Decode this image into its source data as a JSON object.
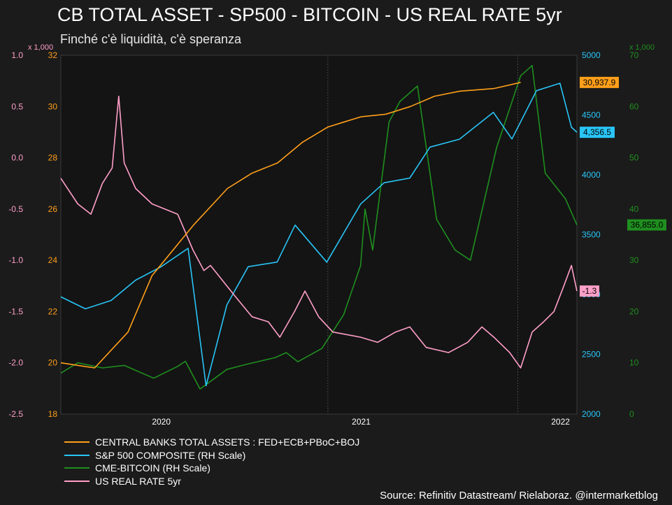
{
  "header": {
    "title": "CB TOTAL ASSET - SP500 - BITCOIN - US REAL RATE 5yr",
    "subtitle": "Finché c'è liquidità, c'è speranza"
  },
  "footer": {
    "source": "Source: Refinitiv Datastream/ Rielaboraz. @intermarketblog"
  },
  "colors": {
    "background": "#1b1b1b",
    "plot_background": "#141414",
    "grid": "#555555",
    "cb": "#ff9f1a",
    "spx": "#29c5f6",
    "btc": "#1f8f1f",
    "real": "#ff9fc8"
  },
  "chart_data": {
    "type": "line",
    "x_range": [
      "2019-07-01",
      "2022-01-31"
    ],
    "x_ticks": [
      {
        "label": "2020",
        "date": "2020-01-01"
      },
      {
        "label": "2021",
        "date": "2021-01-01"
      },
      {
        "label": "2022",
        "date": "2022-01-01"
      }
    ],
    "vertical_marker_dates": [
      "2020-11-01",
      "2021-10-15"
    ],
    "axes": {
      "real_rate": {
        "side": "left-outer",
        "ylim": [
          -2.5,
          1.0
        ],
        "ticks": [
          "1.0",
          "0.5",
          "0.0",
          "-0.5",
          "-1.0",
          "-1.5",
          "-2.0",
          "-2.5"
        ],
        "tick_values": [
          1.0,
          0.5,
          0.0,
          -0.5,
          -1.0,
          -1.5,
          -2.0,
          -2.5
        ],
        "multiplier": "x 1,000",
        "color": "#ff9fc8"
      },
      "cb_assets": {
        "side": "left-inner",
        "ylim": [
          18,
          32
        ],
        "ticks": [
          "32",
          "30",
          "28",
          "26",
          "24",
          "22",
          "20",
          "18"
        ],
        "tick_values": [
          32,
          30,
          28,
          26,
          24,
          22,
          20,
          18
        ],
        "color": "#ff9f1a"
      },
      "sp500": {
        "side": "right-inner",
        "ylim": [
          2000,
          5000
        ],
        "ticks": [
          "5000",
          "4500",
          "4000",
          "3500",
          "3000",
          "2500",
          "2000"
        ],
        "tick_values": [
          5000,
          4500,
          4000,
          3500,
          3000,
          2500,
          2000
        ],
        "color": "#29c5f6"
      },
      "bitcoin": {
        "side": "right-outer",
        "ylim": [
          0,
          70
        ],
        "ticks": [
          "70",
          "60",
          "50",
          "40",
          "30",
          "20",
          "10",
          "0"
        ],
        "tick_values": [
          70,
          60,
          50,
          40,
          30,
          20,
          10,
          0
        ],
        "multiplier": "x 1,000",
        "color": "#1f8f1f"
      }
    },
    "series": [
      {
        "name": "CENTRAL BANKS TOTAL ASSETS : FED+ECB+PBoC+BOJ",
        "axis": "cb_assets",
        "color": "#ff9f1a",
        "last_label": "30,937.9",
        "points": [
          [
            "2019-07-01",
            20.0
          ],
          [
            "2019-09-01",
            19.8
          ],
          [
            "2019-11-01",
            21.2
          ],
          [
            "2019-12-15",
            23.4
          ],
          [
            "2020-03-01",
            25.4
          ],
          [
            "2020-05-01",
            26.8
          ],
          [
            "2020-06-15",
            27.4
          ],
          [
            "2020-08-01",
            27.8
          ],
          [
            "2020-09-15",
            28.6
          ],
          [
            "2020-11-01",
            29.2
          ],
          [
            "2020-12-01",
            29.4
          ],
          [
            "2021-01-01",
            29.6
          ],
          [
            "2021-02-15",
            29.7
          ],
          [
            "2021-04-01",
            30.0
          ],
          [
            "2021-05-15",
            30.4
          ],
          [
            "2021-07-01",
            30.6
          ],
          [
            "2021-09-01",
            30.7
          ],
          [
            "2021-10-20",
            30.94
          ]
        ]
      },
      {
        "name": "S&P 500 COMPOSITE (RH Scale)",
        "axis": "sp500",
        "color": "#29c5f6",
        "last_label": "4,356.5",
        "points": [
          [
            "2019-07-01",
            2980
          ],
          [
            "2019-08-15",
            2880
          ],
          [
            "2019-10-01",
            2950
          ],
          [
            "2019-11-15",
            3120
          ],
          [
            "2019-12-31",
            3230
          ],
          [
            "2020-02-19",
            3386
          ],
          [
            "2020-03-23",
            2237
          ],
          [
            "2020-04-30",
            2912
          ],
          [
            "2020-06-08",
            3232
          ],
          [
            "2020-07-31",
            3271
          ],
          [
            "2020-09-02",
            3580
          ],
          [
            "2020-10-30",
            3270
          ],
          [
            "2020-12-31",
            3756
          ],
          [
            "2021-02-12",
            3934
          ],
          [
            "2021-03-31",
            3973
          ],
          [
            "2021-05-07",
            4232
          ],
          [
            "2021-06-30",
            4298
          ],
          [
            "2021-08-31",
            4523
          ],
          [
            "2021-10-04",
            4300
          ],
          [
            "2021-11-18",
            4704
          ],
          [
            "2021-12-31",
            4766
          ],
          [
            "2022-01-21",
            4398
          ],
          [
            "2022-01-31",
            4356
          ]
        ]
      },
      {
        "name": "CME-BITCOIN (RH Scale)",
        "axis": "bitcoin",
        "color": "#1f8f1f",
        "last_label": "36,855.0",
        "points": [
          [
            "2019-07-01",
            8
          ],
          [
            "2019-08-01",
            10
          ],
          [
            "2019-09-15",
            9
          ],
          [
            "2019-10-25",
            9.5
          ],
          [
            "2019-12-18",
            7
          ],
          [
            "2020-01-31",
            9.3
          ],
          [
            "2020-02-14",
            10.3
          ],
          [
            "2020-03-12",
            4.9
          ],
          [
            "2020-04-30",
            8.7
          ],
          [
            "2020-06-01",
            9.6
          ],
          [
            "2020-07-27",
            11
          ],
          [
            "2020-08-17",
            12
          ],
          [
            "2020-09-07",
            10.2
          ],
          [
            "2020-10-21",
            12.8
          ],
          [
            "2020-11-30",
            19.4
          ],
          [
            "2020-12-31",
            29
          ],
          [
            "2021-01-08",
            40
          ],
          [
            "2021-01-22",
            32
          ],
          [
            "2021-02-21",
            57
          ],
          [
            "2021-03-13",
            61
          ],
          [
            "2021-04-14",
            64
          ],
          [
            "2021-05-19",
            38
          ],
          [
            "2021-06-22",
            32
          ],
          [
            "2021-07-20",
            30
          ],
          [
            "2021-09-06",
            52
          ],
          [
            "2021-10-20",
            66
          ],
          [
            "2021-11-10",
            68
          ],
          [
            "2021-12-04",
            47
          ],
          [
            "2022-01-10",
            42
          ],
          [
            "2022-01-31",
            36.9
          ]
        ]
      },
      {
        "name": "US REAL RATE 5yr",
        "axis": "real_rate",
        "color": "#ff9fc8",
        "last_label": "-1.3",
        "points": [
          [
            "2019-07-01",
            -0.2
          ],
          [
            "2019-08-01",
            -0.45
          ],
          [
            "2019-08-25",
            -0.55
          ],
          [
            "2019-09-15",
            -0.25
          ],
          [
            "2019-10-03",
            -0.1
          ],
          [
            "2019-10-15",
            0.6
          ],
          [
            "2019-10-25",
            -0.05
          ],
          [
            "2019-11-15",
            -0.3
          ],
          [
            "2019-12-15",
            -0.45
          ],
          [
            "2020-01-31",
            -0.55
          ],
          [
            "2020-02-28",
            -0.9
          ],
          [
            "2020-03-19",
            -1.1
          ],
          [
            "2020-03-31",
            -1.05
          ],
          [
            "2020-05-15",
            -1.35
          ],
          [
            "2020-06-15",
            -1.55
          ],
          [
            "2020-07-15",
            -1.6
          ],
          [
            "2020-08-05",
            -1.75
          ],
          [
            "2020-09-01",
            -1.5
          ],
          [
            "2020-09-20",
            -1.3
          ],
          [
            "2020-10-15",
            -1.55
          ],
          [
            "2020-11-10",
            -1.7
          ],
          [
            "2020-12-31",
            -1.75
          ],
          [
            "2021-01-31",
            -1.8
          ],
          [
            "2021-03-05",
            -1.7
          ],
          [
            "2021-03-31",
            -1.65
          ],
          [
            "2021-04-30",
            -1.85
          ],
          [
            "2021-06-10",
            -1.9
          ],
          [
            "2021-07-15",
            -1.8
          ],
          [
            "2021-08-10",
            -1.65
          ],
          [
            "2021-09-01",
            -1.75
          ],
          [
            "2021-09-30",
            -1.9
          ],
          [
            "2021-10-20",
            -2.05
          ],
          [
            "2021-11-10",
            -1.7
          ],
          [
            "2021-12-01",
            -1.6
          ],
          [
            "2021-12-20",
            -1.5
          ],
          [
            "2022-01-07",
            -1.25
          ],
          [
            "2022-01-21",
            -1.05
          ],
          [
            "2022-01-31",
            -1.3
          ]
        ]
      }
    ]
  }
}
